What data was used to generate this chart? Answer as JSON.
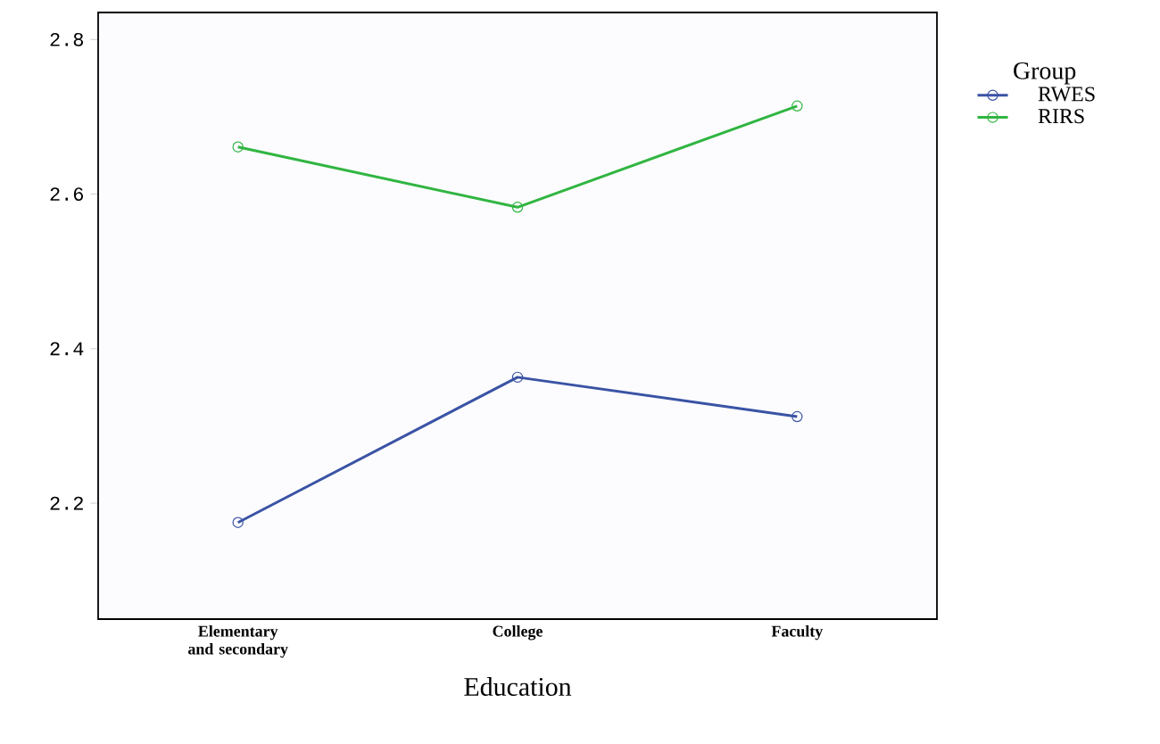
{
  "chart_data": {
    "type": "line",
    "xlabel": "Education",
    "legend_title": "Group",
    "legend": "right",
    "marker": "circle",
    "categories": [
      "Elementary and secondary",
      "College",
      "Faculty"
    ],
    "ylim": [
      2.05,
      2.835
    ],
    "yticks": [
      2.2,
      2.4,
      2.6,
      2.8
    ],
    "series": [
      {
        "name": "RWES",
        "color": "#3a53a4",
        "values": [
          2.175,
          2.363,
          2.312
        ]
      },
      {
        "name": "RIRS",
        "color": "#31b541",
        "values": [
          2.661,
          2.583,
          2.714
        ]
      }
    ]
  }
}
